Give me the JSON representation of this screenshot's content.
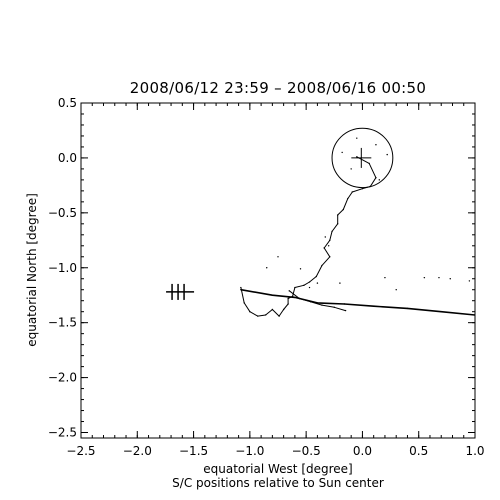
{
  "chart_data": {
    "type": "scatter",
    "title": "2008/06/12 23:59 – 2008/06/16 00:50",
    "xlabel": "equatorial West [degree]",
    "xlabel2": "S/C positions relative to Sun center",
    "ylabel": "equatorial North [degree]",
    "xlim": [
      -2.5,
      1.0
    ],
    "ylim": [
      -2.55,
      0.5
    ],
    "x_ticks": [
      -2.5,
      -2.0,
      -1.5,
      -1.0,
      -0.5,
      0.0,
      0.5,
      1.0
    ],
    "y_ticks": [
      0.5,
      0.0,
      -0.5,
      -1.0,
      -1.5,
      -2.0,
      -2.5
    ],
    "x_tick_labels": [
      "−2.5",
      "−2.0",
      "−1.5",
      "−1.0",
      "−0.5",
      "0.0",
      "0.5",
      "1.0"
    ],
    "y_tick_labels": [
      "0.5",
      "0.0",
      "−0.5",
      "−1.0",
      "−1.5",
      "−2.0",
      "−2.5"
    ],
    "grid": false,
    "sun": {
      "center": [
        0.0,
        0.0
      ],
      "radius": 0.27
    },
    "series": [
      {
        "points": [
          [
            -0.05,
            0.01
          ],
          [
            0.06,
            -0.05
          ],
          [
            0.12,
            -0.18
          ],
          [
            0.07,
            -0.26
          ],
          [
            0.0,
            -0.28
          ],
          [
            -0.09,
            -0.31
          ],
          [
            -0.13,
            -0.37
          ],
          [
            -0.17,
            -0.47
          ],
          [
            -0.22,
            -0.52
          ],
          [
            -0.22,
            -0.6
          ],
          [
            -0.27,
            -0.67
          ],
          [
            -0.29,
            -0.75
          ],
          [
            -0.34,
            -0.82
          ],
          [
            -0.29,
            -0.9
          ],
          [
            -0.36,
            -0.98
          ],
          [
            -0.41,
            -1.08
          ],
          [
            -0.47,
            -1.13
          ],
          [
            -0.52,
            -1.16
          ],
          [
            -0.6,
            -1.18
          ],
          [
            -0.62,
            -1.26
          ],
          [
            -0.66,
            -1.28
          ],
          [
            -0.66,
            -1.33
          ],
          [
            -0.7,
            -1.38
          ],
          [
            -0.74,
            -1.44
          ],
          [
            -0.8,
            -1.38
          ],
          [
            -0.86,
            -1.43
          ],
          [
            -0.93,
            -1.44
          ],
          [
            -1.0,
            -1.4
          ],
          [
            -1.05,
            -1.32
          ],
          [
            -1.08,
            -1.18
          ]
        ]
      },
      {
        "points": [
          [
            -1.08,
            -1.2
          ],
          [
            -0.8,
            -1.25
          ],
          [
            -0.6,
            -1.27
          ],
          [
            -0.4,
            -1.32
          ],
          [
            -0.16,
            -1.33
          ],
          [
            0.1,
            -1.35
          ],
          [
            0.4,
            -1.37
          ],
          [
            0.7,
            -1.4
          ],
          [
            1.0,
            -1.43
          ]
        ]
      },
      {
        "points": [
          [
            -0.65,
            -1.21
          ],
          [
            -0.56,
            -1.28
          ],
          [
            -0.46,
            -1.31
          ],
          [
            -0.36,
            -1.34
          ],
          [
            -0.25,
            -1.36
          ],
          [
            -0.15,
            -1.39
          ]
        ]
      }
    ],
    "markers": [
      {
        "x": -1.62,
        "y": -1.22
      },
      {
        "x": -0.01,
        "y": 0.0
      }
    ],
    "scatter_points": [
      [
        -0.47,
        -1.18
      ],
      [
        -0.4,
        -1.14
      ],
      [
        -0.2,
        -1.14
      ],
      [
        0.2,
        -1.09
      ],
      [
        0.55,
        -1.09
      ],
      [
        0.68,
        -1.09
      ],
      [
        0.78,
        -1.1
      ],
      [
        0.95,
        -1.12
      ],
      [
        -0.85,
        -1.0
      ],
      [
        -0.75,
        -0.9
      ],
      [
        -0.33,
        -0.72
      ],
      [
        -0.55,
        -1.01
      ],
      [
        -0.05,
        0.18
      ],
      [
        0.12,
        0.12
      ],
      [
        0.22,
        0.03
      ],
      [
        -0.1,
        -0.1
      ],
      [
        0.15,
        -0.2
      ],
      [
        -0.18,
        0.05
      ],
      [
        -0.3,
        -0.8
      ],
      [
        0.3,
        -1.2
      ]
    ]
  }
}
